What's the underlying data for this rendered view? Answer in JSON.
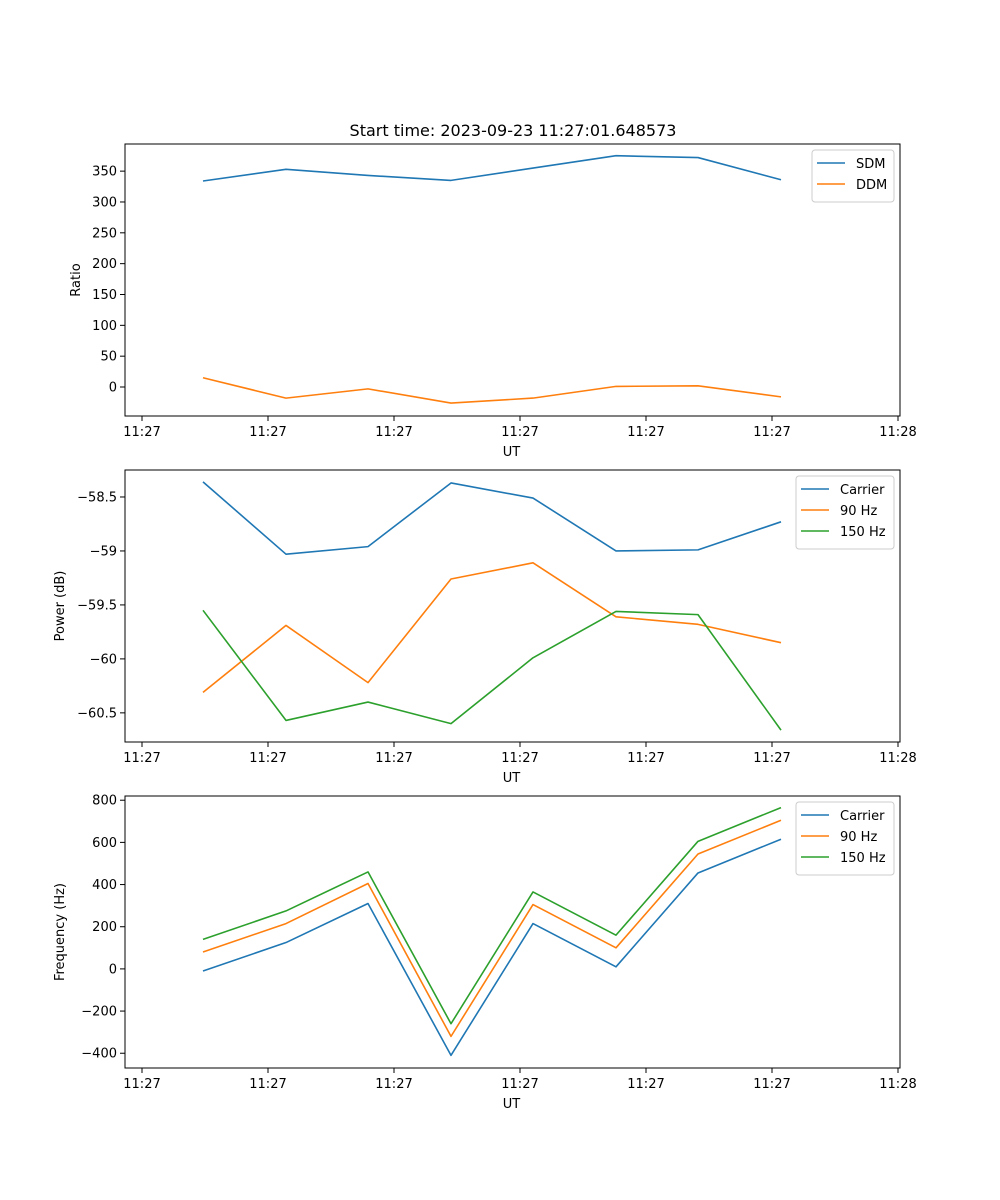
{
  "figure_title": "Start time: 2023-09-23 11:27:01.648573",
  "chart_data": [
    {
      "type": "line",
      "xlabel": "UT",
      "ylabel": "Ratio",
      "x_ticks": [
        "11:27",
        "11:27",
        "11:27",
        "11:27",
        "11:27",
        "11:27",
        "11:28"
      ],
      "y_ticks": [
        0,
        50,
        100,
        150,
        200,
        250,
        300,
        350
      ],
      "ylim": [
        -47,
        394
      ],
      "legend_position": "top-right",
      "x": [
        1,
        2,
        3,
        4,
        5,
        6,
        7,
        8
      ],
      "series": [
        {
          "name": "SDM",
          "color": "#1f77b4",
          "values": [
            334,
            353,
            343,
            335,
            355,
            375,
            372,
            336
          ]
        },
        {
          "name": "DDM",
          "color": "#ff7f0e",
          "values": [
            15,
            -18,
            -3,
            -26,
            -18,
            1,
            2,
            -16
          ]
        }
      ]
    },
    {
      "type": "line",
      "xlabel": "UT",
      "ylabel": "Power (dB)",
      "x_ticks": [
        "11:27",
        "11:27",
        "11:27",
        "11:27",
        "11:27",
        "11:27",
        "11:28"
      ],
      "y_ticks": [
        -58.5,
        -59.0,
        -59.5,
        -60.0,
        -60.5
      ],
      "ylim": [
        -60.77,
        -58.25
      ],
      "legend_position": "top-right",
      "x": [
        1,
        2,
        3,
        4,
        5,
        6,
        7,
        8
      ],
      "series": [
        {
          "name": "Carrier",
          "color": "#1f77b4",
          "values": [
            -58.36,
            -59.03,
            -58.96,
            -58.37,
            -58.51,
            -59.0,
            -58.99,
            -58.73
          ]
        },
        {
          "name": "90 Hz",
          "color": "#ff7f0e",
          "values": [
            -60.31,
            -59.69,
            -60.22,
            -59.26,
            -59.11,
            -59.61,
            -59.68,
            -59.85
          ]
        },
        {
          "name": "150 Hz",
          "color": "#2ca02c",
          "values": [
            -59.55,
            -60.57,
            -60.4,
            -60.6,
            -59.99,
            -59.56,
            -59.59,
            -60.66
          ]
        }
      ]
    },
    {
      "type": "line",
      "xlabel": "UT",
      "ylabel": "Frequency (Hz)",
      "x_ticks": [
        "11:27",
        "11:27",
        "11:27",
        "11:27",
        "11:27",
        "11:27",
        "11:28"
      ],
      "y_ticks": [
        800,
        600,
        400,
        200,
        0,
        -200,
        -400
      ],
      "ylim": [
        -470,
        820
      ],
      "legend_position": "top-right",
      "x": [
        1,
        2,
        3,
        4,
        5,
        6,
        7,
        8
      ],
      "series": [
        {
          "name": "Carrier",
          "color": "#1f77b4",
          "values": [
            -10,
            125,
            310,
            -410,
            215,
            10,
            455,
            615
          ]
        },
        {
          "name": "90 Hz",
          "color": "#ff7f0e",
          "values": [
            80,
            215,
            405,
            -320,
            305,
            100,
            545,
            705
          ]
        },
        {
          "name": "150 Hz",
          "color": "#2ca02c",
          "values": [
            140,
            275,
            460,
            -260,
            365,
            160,
            605,
            765
          ]
        }
      ]
    }
  ]
}
